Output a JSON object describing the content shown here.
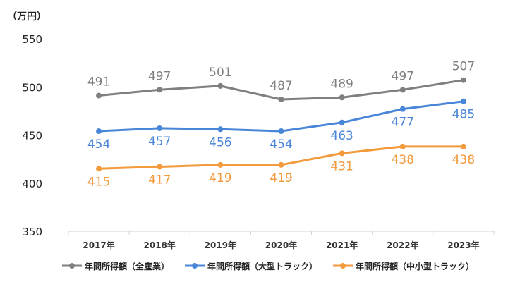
{
  "chart_data": {
    "type": "line",
    "unit_label": "（万円）",
    "categories": [
      "2017年",
      "2018年",
      "2019年",
      "2020年",
      "2021年",
      "2022年",
      "2023年"
    ],
    "y_ticks": [
      "550",
      "500",
      "450",
      "400",
      "350"
    ],
    "ylim": [
      350,
      550
    ],
    "grid": false,
    "legend_position": "bottom",
    "series": [
      {
        "name": "年間所得額（全産業）",
        "color": "#7f7f7f",
        "values": [
          491,
          497,
          501,
          487,
          489,
          497,
          507
        ],
        "label_position": "above"
      },
      {
        "name": "年間所得額（大型トラック）",
        "color": "#4a86d8",
        "values": [
          454,
          457,
          456,
          454,
          463,
          477,
          485
        ],
        "label_position": "below"
      },
      {
        "name": "年間所得額（中小型トラック）",
        "color": "#f29a3c",
        "values": [
          415,
          417,
          419,
          419,
          431,
          438,
          438
        ],
        "label_position": "below"
      }
    ]
  }
}
